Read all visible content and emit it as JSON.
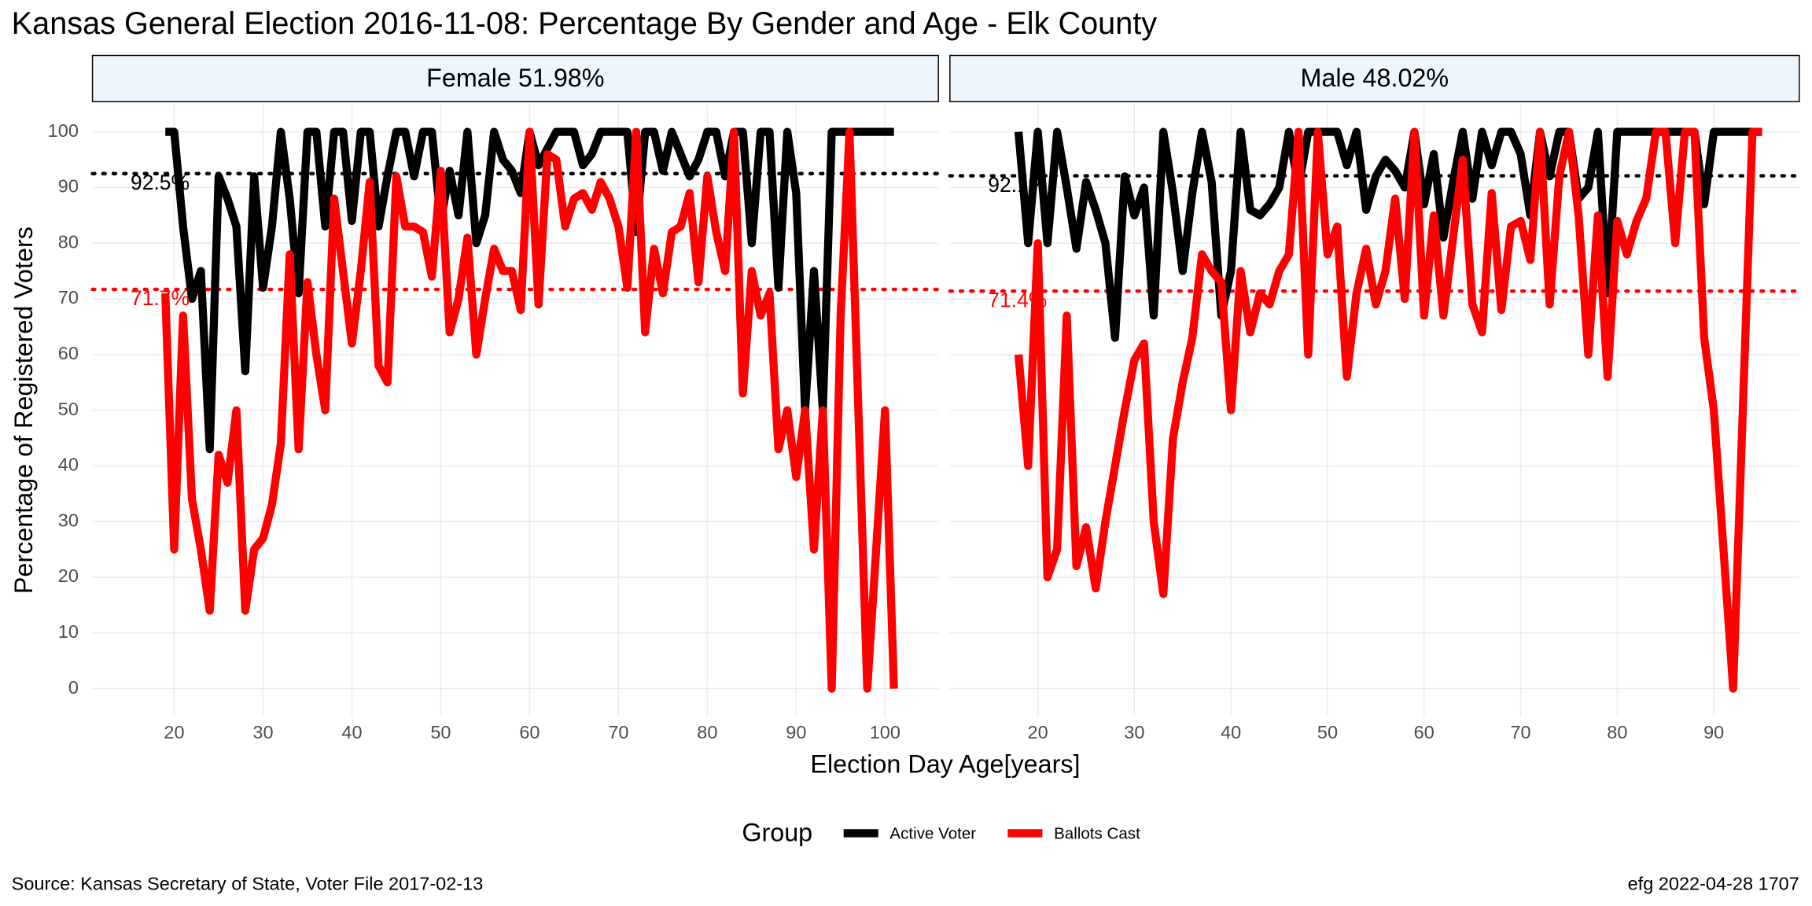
{
  "chart_data": {
    "type": "line",
    "title": "Kansas General Election 2016-11-08:  Percentage By Gender and Age - Elk County",
    "y_label": "Percentage of Registered Voters",
    "x_label": "Election Day Age[years]",
    "legend_title": "Group",
    "source": "Source:  Kansas Secretary of State, Voter File  2017-02-13",
    "credit": "efg 2022-04-28 1707",
    "ylim": [
      -5,
      105
    ],
    "yticks": [
      0,
      10,
      20,
      30,
      40,
      50,
      60,
      70,
      80,
      90,
      100
    ],
    "grid": true,
    "panels": [
      {
        "title": "Female 51.98%",
        "xlim": [
          10.8,
          106
        ],
        "xticks": [
          20,
          30,
          40,
          50,
          60,
          70,
          80,
          90,
          100
        ],
        "x": [
          19,
          20,
          21,
          22,
          23,
          24,
          25,
          26,
          27,
          28,
          29,
          30,
          31,
          32,
          33,
          34,
          35,
          36,
          37,
          38,
          39,
          40,
          41,
          42,
          43,
          44,
          45,
          46,
          47,
          48,
          49,
          50,
          51,
          52,
          53,
          54,
          55,
          56,
          57,
          58,
          59,
          60,
          61,
          62,
          63,
          64,
          65,
          66,
          67,
          68,
          69,
          70,
          71,
          72,
          73,
          74,
          75,
          76,
          77,
          78,
          79,
          80,
          81,
          82,
          83,
          84,
          85,
          86,
          87,
          88,
          89,
          90,
          91,
          92,
          93,
          94,
          95,
          96,
          97,
          98,
          99,
          100,
          101
        ],
        "series": [
          {
            "name": "Active Voter",
            "color": "#000000",
            "values": [
              100,
              100,
              83,
              70,
              75,
              43,
              92,
              88,
              83,
              57,
              92,
              72,
              83,
              100,
              88,
              71,
              100,
              100,
              83,
              100,
              100,
              84,
              100,
              100,
              83,
              92,
              100,
              100,
              92,
              100,
              100,
              84,
              93,
              85,
              100,
              80,
              85,
              100,
              95,
              93,
              89,
              100,
              94,
              97,
              100,
              100,
              100,
              94,
              96,
              100,
              100,
              100,
              100,
              82,
              100,
              100,
              93,
              100,
              96,
              92,
              95,
              100,
              100,
              92,
              100,
              100,
              80,
              100,
              100,
              72,
              100,
              89,
              50,
              75,
              50,
              100,
              100,
              100,
              100,
              100,
              100,
              100,
              100
            ]
          },
          {
            "name": "Ballots Cast",
            "color": "#ff0000",
            "values": [
              71,
              25,
              67,
              34,
              25,
              14,
              42,
              37,
              50,
              14,
              25,
              27,
              33,
              44,
              78,
              43,
              73,
              60,
              50,
              88,
              75,
              62,
              75,
              91,
              58,
              55,
              92,
              83,
              83,
              82,
              74,
              93,
              64,
              70,
              81,
              60,
              70,
              79,
              75,
              75,
              68,
              100,
              69,
              96,
              95,
              83,
              88,
              89,
              86,
              91,
              88,
              83,
              72,
              100,
              64,
              79,
              71,
              82,
              83,
              89,
              73,
              92,
              82,
              75,
              100,
              53,
              75,
              67,
              71,
              43,
              50,
              38,
              50,
              25,
              50,
              0,
              67,
              100,
              50,
              0,
              25,
              50,
              0
            ]
          }
        ],
        "reference_lines": [
          {
            "value": 92.5,
            "label": "92.5%",
            "color": "#000000"
          },
          {
            "value": 71.7,
            "label": "71.7%",
            "color": "#ff0000"
          }
        ]
      },
      {
        "title": "Male 48.02%",
        "xlim": [
          10.9,
          98.85
        ],
        "xticks": [
          20,
          30,
          40,
          50,
          60,
          70,
          80,
          90
        ],
        "x": [
          18,
          19,
          20,
          21,
          22,
          23,
          24,
          25,
          26,
          27,
          28,
          29,
          30,
          31,
          32,
          33,
          34,
          35,
          36,
          37,
          38,
          39,
          40,
          41,
          42,
          43,
          44,
          45,
          46,
          47,
          48,
          49,
          50,
          51,
          52,
          53,
          54,
          55,
          56,
          57,
          58,
          59,
          60,
          61,
          62,
          63,
          64,
          65,
          66,
          67,
          68,
          69,
          70,
          71,
          72,
          73,
          74,
          75,
          76,
          77,
          78,
          79,
          80,
          81,
          82,
          83,
          84,
          85,
          86,
          87,
          88,
          89,
          90,
          91,
          92,
          93,
          94,
          95
        ],
        "series": [
          {
            "name": "Active Voter",
            "color": "#000000",
            "values": [
              100,
              80,
              100,
              80,
              100,
              90,
              79,
              91,
              86,
              80,
              63,
              92,
              85,
              90,
              67,
              100,
              89,
              75,
              89,
              100,
              91,
              67,
              75,
              100,
              86,
              85,
              87,
              90,
              100,
              90,
              100,
              100,
              100,
              100,
              94,
              100,
              86,
              92,
              95,
              93,
              90,
              100,
              87,
              96,
              81,
              91,
              100,
              88,
              100,
              94,
              100,
              100,
              96,
              85,
              100,
              92,
              100,
              100,
              88,
              90,
              100,
              71,
              100,
              100,
              100,
              100,
              100,
              100,
              100,
              100,
              100,
              87,
              100,
              100,
              100,
              100,
              100,
              100
            ]
          },
          {
            "name": "Ballots Cast",
            "color": "#ff0000",
            "values": [
              60,
              40,
              80,
              20,
              25,
              67,
              22,
              29,
              18,
              30,
              40,
              50,
              59,
              62,
              30,
              17,
              45,
              55,
              63,
              78,
              75,
              73,
              50,
              75,
              64,
              71,
              69,
              75,
              78,
              100,
              60,
              100,
              78,
              83,
              56,
              71,
              79,
              69,
              75,
              88,
              70,
              100,
              67,
              85,
              67,
              81,
              95,
              69,
              64,
              89,
              68,
              83,
              84,
              77,
              100,
              69,
              92,
              100,
              85,
              60,
              85,
              56,
              84,
              78,
              84,
              88,
              100,
              100,
              80,
              100,
              100,
              63,
              50,
              25,
              0,
              50,
              100,
              100
            ]
          }
        ],
        "reference_lines": [
          {
            "value": 92.1,
            "label": "92.1%",
            "color": "#000000"
          },
          {
            "value": 71.4,
            "label": "71.4%",
            "color": "#ff0000"
          }
        ]
      }
    ]
  }
}
